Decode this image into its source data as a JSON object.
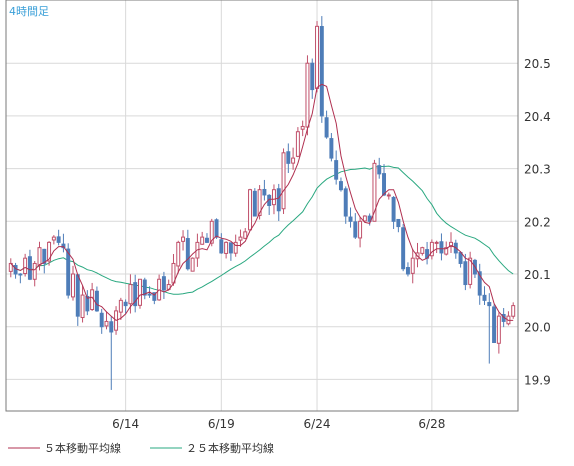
{
  "chart_data": {
    "type": "candlestick",
    "title": "4時間足",
    "ylim": [
      19.84,
      20.62
    ],
    "y_ticks": [
      19.9,
      20.0,
      20.1,
      20.2,
      20.3,
      20.4,
      20.5
    ],
    "x_ticks": [
      {
        "label": "6/14",
        "index": 24
      },
      {
        "label": "6/19",
        "index": 44
      },
      {
        "label": "6/24",
        "index": 64
      },
      {
        "label": "6/28",
        "index": 88
      }
    ],
    "candle_count": 106,
    "grid": true,
    "legend_position": "bottom",
    "colors": {
      "up": "#c0506a",
      "down": "#4e7db8",
      "ma5": "#b03050",
      "ma25": "#2aa880",
      "grid": "#d9d9d9",
      "frame": "#7a7a7a",
      "title": "#3a9fd8",
      "axis_text": "#333333"
    },
    "series": [
      {
        "name": "５本移動平均線",
        "key": "ma5"
      },
      {
        "name": "２５本移動平均線",
        "key": "ma25"
      }
    ],
    "closes": [
      20.12,
      20.1,
      20.1,
      20.13,
      20.09,
      20.12,
      20.15,
      20.12,
      20.16,
      20.17,
      20.16,
      20.15,
      20.06,
      20.1,
      20.02,
      20.06,
      20.03,
      20.07,
      20.03,
      20.0,
      20.01,
      19.99,
      20.03,
      20.05,
      20.04,
      20.08,
      20.04,
      20.09,
      20.06,
      20.06,
      20.05,
      20.09,
      20.07,
      20.08,
      20.12,
      20.16,
      20.17,
      20.11,
      20.13,
      20.16,
      20.17,
      20.16,
      20.2,
      20.17,
      20.14,
      20.16,
      20.14,
      20.16,
      20.17,
      20.18,
      20.26,
      20.21,
      20.26,
      20.25,
      20.23,
      20.26,
      20.22,
      20.33,
      20.31,
      20.32,
      20.37,
      20.38,
      20.5,
      20.45,
      20.57,
      20.4,
      20.36,
      20.32,
      20.28,
      20.26,
      20.21,
      20.2,
      20.17,
      20.2,
      20.21,
      20.2,
      20.31,
      20.29,
      20.25,
      20.25,
      20.2,
      20.19,
      20.11,
      20.1,
      20.13,
      20.14,
      20.15,
      20.13,
      20.16,
      20.16,
      20.14,
      20.15,
      20.16,
      20.14,
      20.12,
      20.08,
      20.13,
      20.1,
      20.06,
      20.05,
      20.04,
      19.97,
      20.02,
      20.01,
      20.02,
      20.04
    ]
  },
  "legend": {
    "ma5_label": "５本移動平均線",
    "ma25_label": "２５本移動平均線"
  }
}
